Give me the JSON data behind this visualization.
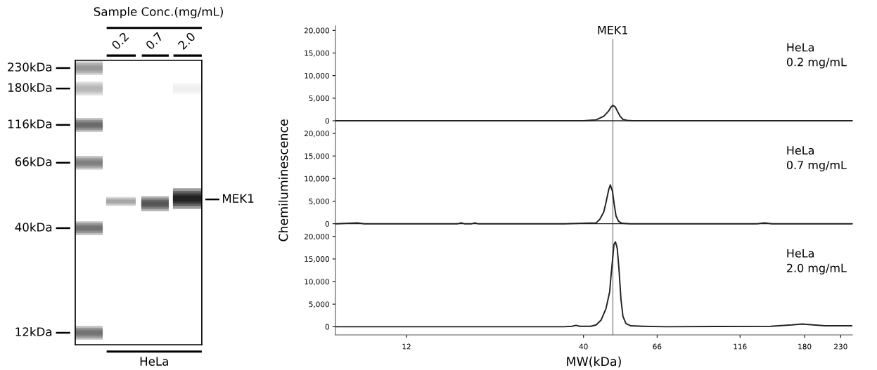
{
  "chart_data": [
    {
      "type": "other",
      "title": "Sample Conc.(mg/mL)",
      "categories": [
        null,
        "0.2",
        "0.7",
        "2.0"
      ],
      "xlabel": "HeLa",
      "annotations": [
        "230kDa",
        "180kDa",
        "116kDa",
        "66kDa",
        "40kDa",
        "12kDa",
        "MEK1"
      ]
    },
    {
      "type": "line",
      "color": "#222222",
      "log": "x",
      "tick_labels": "y",
      "xlim": [
        7.4,
        249
      ],
      "ylim": [
        -1800,
        21000
      ],
      "yticks": [
        0,
        {
          "value": 5000,
          "label": "5,000"
        },
        {
          "value": 10000,
          "label": "10,000"
        },
        {
          "value": 15000,
          "label": "15,000"
        },
        {
          "value": 20000,
          "label": "20,000"
        }
      ],
      "x": [
        7.4,
        20,
        40,
        43.6,
        45.9,
        47.5,
        48.2,
        48.8,
        49.6,
        50.3,
        51.3,
        52.3,
        53.8,
        56.0,
        100,
        249
      ],
      "values": [
        0,
        0,
        0,
        200,
        1000,
        2200,
        3000,
        3400,
        3100,
        2200,
        1000,
        300,
        100,
        0,
        0,
        0
      ],
      "ref_lines": [
        {
          "axis": "x",
          "value": 48.8,
          "label": "MEK1",
          "color": "#a6a6a6"
        }
      ],
      "annotations": [
        "HeLa\n0.2 mg/mL"
      ]
    },
    {
      "type": "line",
      "color": "#222222",
      "log": "x",
      "tick_labels": "y",
      "xlim": [
        7.4,
        249
      ],
      "ylim": [
        -1800,
        21000
      ],
      "ylabel": "Chemiluminescence",
      "yticks": [
        0,
        {
          "value": 5000,
          "label": "5,000"
        },
        {
          "value": 10000,
          "label": "10,000"
        },
        {
          "value": 15000,
          "label": "15,000"
        },
        {
          "value": 20000,
          "label": "20,000"
        }
      ],
      "x": [
        7.4,
        8.6,
        9.0,
        17.0,
        17.4,
        17.8,
        18.7,
        19.1,
        19.5,
        35,
        43.6,
        44.7,
        45.9,
        46.6,
        47.5,
        48.0,
        48.7,
        49.3,
        49.9,
        50.8,
        52.0,
        55,
        130,
        137,
        144,
        249
      ],
      "values": [
        0,
        200,
        0,
        0,
        200,
        0,
        0,
        200,
        0,
        0,
        200,
        1000,
        2600,
        4700,
        7600,
        8600,
        7200,
        4200,
        1700,
        500,
        100,
        0,
        0,
        200,
        0,
        0
      ],
      "ref_lines": [
        {
          "axis": "x",
          "value": 48.8,
          "color": "#a6a6a6"
        }
      ],
      "annotations": [
        "HeLa\n0.7 mg/mL"
      ]
    },
    {
      "type": "line",
      "color": "#222222",
      "log": "x",
      "xlim": [
        7.4,
        249
      ],
      "ylim": [
        -1800,
        21000
      ],
      "xlabel": "MW(kDa)",
      "xticks": [
        12,
        40,
        66,
        116,
        180,
        230
      ],
      "yticks": [
        0,
        {
          "value": 5000,
          "label": "5,000"
        },
        {
          "value": 10000,
          "label": "10,000"
        },
        {
          "value": 15000,
          "label": "15,000"
        },
        {
          "value": 20000,
          "label": "20,000"
        }
      ],
      "x": [
        7.4,
        35,
        37,
        38.0,
        39,
        42,
        43.6,
        45.1,
        46.6,
        47.8,
        48.2,
        48.8,
        49.2,
        49.7,
        50.3,
        50.9,
        51.6,
        52.3,
        53.4,
        55.2,
        60,
        70,
        143,
        165,
        177,
        190.6,
        207,
        249
      ],
      "values": [
        0,
        0,
        100,
        300,
        100,
        100,
        400,
        1500,
        4000,
        7800,
        11100,
        15300,
        18200,
        18800,
        17400,
        12800,
        6100,
        2300,
        700,
        200,
        100,
        0,
        100,
        400,
        600,
        400,
        200,
        200
      ],
      "ref_lines": [
        {
          "axis": "x",
          "value": 48.8,
          "color": "#a6a6a6"
        }
      ],
      "annotations": [
        "HeLa\n2.0 mg/mL"
      ]
    }
  ]
}
